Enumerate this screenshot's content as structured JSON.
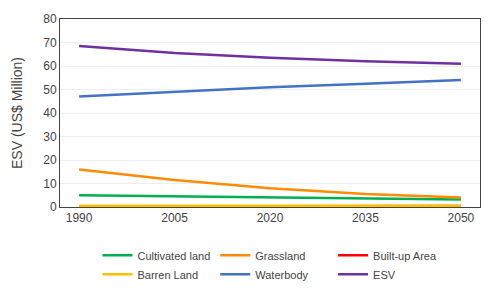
{
  "chart_data": {
    "type": "line",
    "x": [
      1990,
      2005,
      2020,
      2035,
      2050
    ],
    "series": [
      {
        "name": "Cultivated land",
        "color": "#00b050",
        "values": [
          5.0,
          4.6,
          4.2,
          3.8,
          3.2
        ]
      },
      {
        "name": "Grassland",
        "color": "#ff8c00",
        "values": [
          16.0,
          11.5,
          8.0,
          5.5,
          4.0
        ]
      },
      {
        "name": "Built-up Area",
        "color": "#ff0000",
        "values": [
          0.2,
          0.25,
          0.3,
          0.35,
          0.4
        ]
      },
      {
        "name": "Barren Land",
        "color": "#ffc000",
        "values": [
          0.5,
          0.5,
          0.5,
          0.5,
          0.5
        ]
      },
      {
        "name": "Waterbody",
        "color": "#4472c4",
        "values": [
          47.0,
          49.0,
          51.0,
          52.5,
          54.0
        ]
      },
      {
        "name": "ESV",
        "color": "#7030a0",
        "values": [
          68.5,
          65.5,
          63.5,
          62.0,
          61.0
        ]
      }
    ],
    "ylabel": "ESV (US$ Million)",
    "xlim": [
      1987,
      2053
    ],
    "xticks": [
      1990,
      2005,
      2020,
      2035,
      2050
    ],
    "ylim": [
      0,
      80
    ],
    "yticks": [
      0,
      10,
      20,
      30,
      40,
      50,
      60,
      70,
      80
    ],
    "grid": "y",
    "legend": "bottom"
  }
}
